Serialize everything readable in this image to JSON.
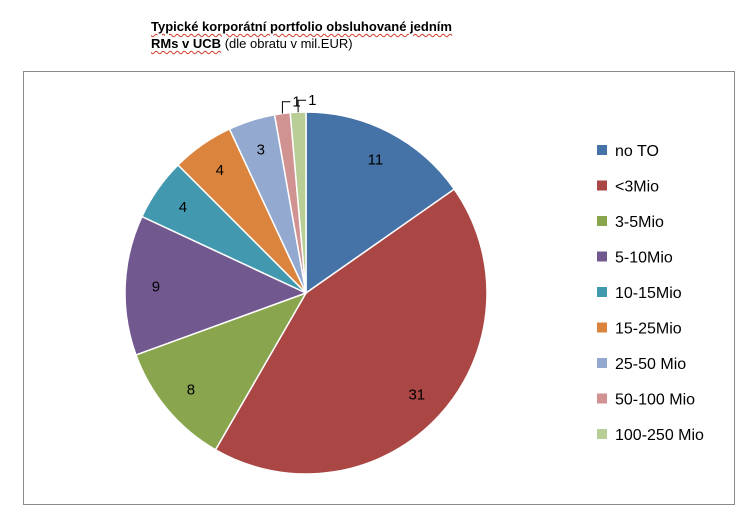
{
  "title": {
    "line1": "Typické korporátní portfolio obsluhované jedním",
    "line2_bold": "RMs v UCB",
    "line2_rest": " (dle obratu v mil.EUR)"
  },
  "chart_data": {
    "type": "pie",
    "categories": [
      "no TO",
      "<3Mio",
      "3-5Mio",
      "5-10Mio",
      "10-15Mio",
      "15-25Mio",
      "25-50 Mio",
      "50-100 Mio",
      "100-250 Mio"
    ],
    "values": [
      11,
      31,
      8,
      9,
      4,
      4,
      3,
      1,
      1
    ],
    "colors": [
      "#4572A7",
      "#AA4643",
      "#89A54E",
      "#71588F",
      "#4198AF",
      "#DB843D",
      "#93A9CF",
      "#D19392",
      "#B9CD96"
    ],
    "legend_position": "right",
    "data_labels": true
  }
}
